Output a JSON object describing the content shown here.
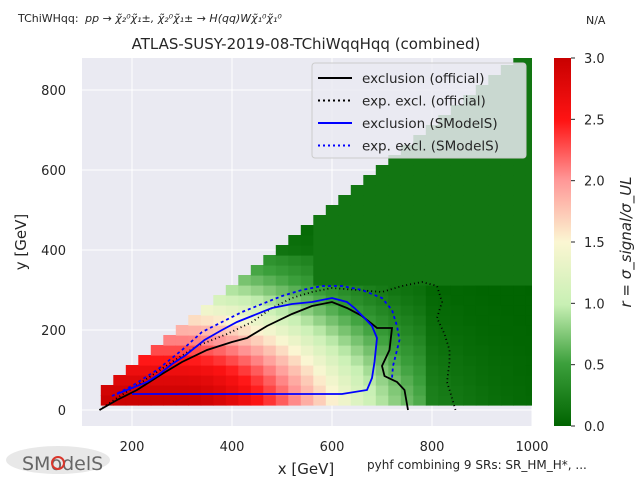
{
  "header": {
    "topology_prefix": "TChiWHqq:",
    "process": "pp → χ̃₂⁰χ̃₁±, χ̃₂⁰χ̃₁± → H(qq)Wχ̃₁⁰χ̃₁⁰",
    "top_right_note": "N/A",
    "footer_note": "pyhf combining 9 SRs: SR_HM_H*, ...",
    "logo_text": "SModelS"
  },
  "chart_data": {
    "type": "heatmap",
    "title": "ATLAS-SUSY-2019-08-TChiWqqHqq (combined)",
    "xlabel": "x [GeV]",
    "ylabel": "y [GeV]",
    "colorbar_label": "r = σ_signal/σ_UL",
    "xlim": [
      100,
      1000
    ],
    "ylim": [
      -40,
      880
    ],
    "xticks": [
      200,
      400,
      600,
      800,
      1000
    ],
    "yticks": [
      0,
      200,
      400,
      600,
      800
    ],
    "colorbar_range": [
      0.0,
      3.0
    ],
    "colorbar_ticks": [
      0.0,
      0.5,
      1.0,
      1.5,
      2.0,
      2.5,
      3.0
    ],
    "colormap": {
      "low": "#006400",
      "mid": "#ffffe0",
      "high": "#c80000"
    },
    "grid": true,
    "legend_position": "top-right",
    "legend": [
      {
        "label": "exclusion (official)",
        "color": "#000000",
        "style": "solid"
      },
      {
        "label": "exp. excl. (official)",
        "color": "#000000",
        "style": "dotted"
      },
      {
        "label": "exclusion (SModelS)",
        "color": "#0000ff",
        "style": "solid"
      },
      {
        "label": "exp. excl. (SModelS)",
        "color": "#0000ff",
        "style": "dotted"
      }
    ],
    "grid_spec": {
      "x_start": 150,
      "x_step": 25,
      "y_start": 25,
      "y_step": 25
    },
    "curves": [
      {
        "name": "exclusion (official)",
        "color": "#000000",
        "dash": "none",
        "points": [
          [
            135,
            0
          ],
          [
            170,
            25
          ],
          [
            210,
            50
          ],
          [
            260,
            90
          ],
          [
            300,
            120
          ],
          [
            350,
            150
          ],
          [
            400,
            170
          ],
          [
            430,
            180
          ],
          [
            470,
            210
          ],
          [
            520,
            240
          ],
          [
            560,
            260
          ],
          [
            600,
            270
          ],
          [
            630,
            255
          ],
          [
            660,
            235
          ],
          [
            690,
            205
          ],
          [
            720,
            205
          ],
          [
            715,
            150
          ],
          [
            700,
            110
          ],
          [
            705,
            85
          ],
          [
            730,
            70
          ],
          [
            745,
            50
          ],
          [
            752,
            0
          ]
        ]
      },
      {
        "name": "exp. excl. (official)",
        "color": "#000000",
        "dash": "1,3",
        "points": [
          [
            135,
            0
          ],
          [
            170,
            30
          ],
          [
            220,
            70
          ],
          [
            280,
            120
          ],
          [
            330,
            160
          ],
          [
            390,
            190
          ],
          [
            440,
            220
          ],
          [
            480,
            255
          ],
          [
            520,
            280
          ],
          [
            560,
            295
          ],
          [
            600,
            305
          ],
          [
            650,
            300
          ],
          [
            700,
            295
          ],
          [
            740,
            310
          ],
          [
            780,
            320
          ],
          [
            810,
            310
          ],
          [
            820,
            270
          ],
          [
            810,
            230
          ],
          [
            825,
            190
          ],
          [
            835,
            150
          ],
          [
            835,
            120
          ],
          [
            830,
            70
          ],
          [
            840,
            30
          ],
          [
            847,
            0
          ]
        ]
      },
      {
        "name": "exclusion (SModelS)",
        "color": "#0000ff",
        "dash": "none",
        "points": [
          [
            170,
            40
          ],
          [
            200,
            55
          ],
          [
            230,
            70
          ],
          [
            255,
            90
          ],
          [
            280,
            115
          ],
          [
            305,
            135
          ],
          [
            320,
            150
          ],
          [
            345,
            175
          ],
          [
            380,
            200
          ],
          [
            410,
            220
          ],
          [
            440,
            235
          ],
          [
            480,
            255
          ],
          [
            520,
            265
          ],
          [
            560,
            270
          ],
          [
            600,
            280
          ],
          [
            630,
            270
          ],
          [
            645,
            255
          ],
          [
            665,
            230
          ],
          [
            680,
            210
          ],
          [
            690,
            180
          ],
          [
            685,
            120
          ],
          [
            680,
            80
          ],
          [
            670,
            50
          ],
          [
            620,
            40
          ],
          [
            500,
            40
          ],
          [
            350,
            40
          ],
          [
            200,
            40
          ]
        ]
      },
      {
        "name": "exp. excl. (SModelS)",
        "color": "#0000ff",
        "dash": "3,3",
        "points": [
          [
            160,
            35
          ],
          [
            200,
            60
          ],
          [
            250,
            100
          ],
          [
            300,
            150
          ],
          [
            340,
            195
          ],
          [
            380,
            220
          ],
          [
            420,
            245
          ],
          [
            460,
            265
          ],
          [
            500,
            285
          ],
          [
            540,
            300
          ],
          [
            580,
            310
          ],
          [
            620,
            310
          ],
          [
            660,
            300
          ],
          [
            700,
            280
          ],
          [
            720,
            250
          ],
          [
            730,
            210
          ],
          [
            735,
            175
          ],
          [
            728,
            140
          ],
          [
            722,
            110
          ],
          [
            720,
            80
          ]
        ]
      }
    ]
  }
}
